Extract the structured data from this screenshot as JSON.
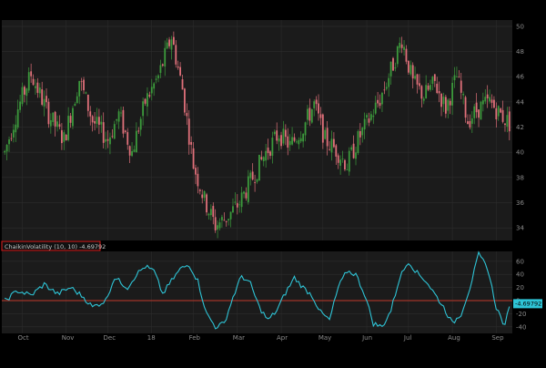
{
  "theme": {
    "background": "#000000",
    "panel": "#1b1b1b",
    "grid": "#2e2e2e",
    "up": "#3c9a3c",
    "down": "#e0707a",
    "axis_text": "#8a8a8a",
    "osc_line": "#2ec4d6",
    "zero_line": "#c0392b",
    "label_border": "#e02020"
  },
  "price_axis": {
    "labels": [
      "50",
      "48",
      "46",
      "44",
      "42",
      "40",
      "38",
      "36",
      "34"
    ],
    "min": 33,
    "max": 50.5
  },
  "osc_axis": {
    "labels": [
      "60",
      "40",
      "20",
      "0",
      "-20",
      "-40"
    ],
    "min": -50,
    "max": 75
  },
  "time_axis": {
    "labels": [
      "Oct",
      "Nov",
      "Dec",
      "18",
      "Feb",
      "Mar",
      "Apr",
      "May",
      "Jun",
      "Jul",
      "Aug",
      "Sep"
    ]
  },
  "study": {
    "label": "ChaikinVolatility (10, 10) -4.69792",
    "value_badge": "-4.69792"
  },
  "chart_data": {
    "type": "candlestick",
    "panels": [
      "price",
      "ChaikinVolatility"
    ],
    "price_range": [
      33,
      50.5
    ],
    "price_trend_anchors": [
      [
        0,
        40
      ],
      [
        6,
        43.5
      ],
      [
        12,
        46.2
      ],
      [
        20,
        43
      ],
      [
        27,
        41
      ],
      [
        34,
        45.8
      ],
      [
        40,
        42.5
      ],
      [
        47,
        41
      ],
      [
        52,
        43
      ],
      [
        58,
        40
      ],
      [
        64,
        44
      ],
      [
        70,
        46
      ],
      [
        76,
        49.2
      ],
      [
        81,
        45
      ],
      [
        86,
        39
      ],
      [
        91,
        36.2
      ],
      [
        96,
        34.2
      ],
      [
        101,
        34.8
      ],
      [
        107,
        36
      ],
      [
        113,
        38
      ],
      [
        119,
        40
      ],
      [
        125,
        41.5
      ],
      [
        130,
        40.5
      ],
      [
        136,
        42
      ],
      [
        141,
        43.8
      ],
      [
        146,
        41
      ],
      [
        151,
        40.2
      ],
      [
        156,
        39
      ],
      [
        161,
        41
      ],
      [
        166,
        42.6
      ],
      [
        171,
        44.2
      ],
      [
        176,
        46.5
      ],
      [
        181,
        49
      ],
      [
        186,
        45.5
      ],
      [
        191,
        44.5
      ],
      [
        196,
        45.5
      ],
      [
        201,
        43.5
      ],
      [
        206,
        46
      ],
      [
        211,
        42.5
      ],
      [
        216,
        43.5
      ],
      [
        221,
        44
      ],
      [
        226,
        43
      ],
      [
        230,
        42.3
      ]
    ],
    "osc_range": [
      -50,
      75
    ],
    "osc_trend_anchors": [
      [
        0,
        0
      ],
      [
        6,
        15
      ],
      [
        12,
        8
      ],
      [
        18,
        25
      ],
      [
        24,
        10
      ],
      [
        30,
        20
      ],
      [
        36,
        5
      ],
      [
        40,
        -10
      ],
      [
        46,
        0
      ],
      [
        50,
        35
      ],
      [
        56,
        20
      ],
      [
        60,
        40
      ],
      [
        64,
        52
      ],
      [
        68,
        45
      ],
      [
        72,
        10
      ],
      [
        76,
        30
      ],
      [
        80,
        48
      ],
      [
        84,
        55
      ],
      [
        88,
        30
      ],
      [
        92,
        -20
      ],
      [
        96,
        -40
      ],
      [
        100,
        -35
      ],
      [
        104,
        5
      ],
      [
        108,
        38
      ],
      [
        112,
        25
      ],
      [
        116,
        -10
      ],
      [
        120,
        -30
      ],
      [
        124,
        -15
      ],
      [
        128,
        12
      ],
      [
        132,
        35
      ],
      [
        136,
        20
      ],
      [
        140,
        8
      ],
      [
        144,
        -18
      ],
      [
        148,
        -30
      ],
      [
        152,
        20
      ],
      [
        156,
        45
      ],
      [
        160,
        40
      ],
      [
        164,
        10
      ],
      [
        168,
        -35
      ],
      [
        172,
        -40
      ],
      [
        176,
        -15
      ],
      [
        180,
        35
      ],
      [
        184,
        60
      ],
      [
        188,
        42
      ],
      [
        192,
        30
      ],
      [
        196,
        10
      ],
      [
        200,
        -10
      ],
      [
        204,
        -35
      ],
      [
        208,
        -20
      ],
      [
        212,
        20
      ],
      [
        216,
        70
      ],
      [
        220,
        50
      ],
      [
        224,
        -10
      ],
      [
        228,
        -40
      ],
      [
        230,
        -5
      ]
    ],
    "last_osc_value": -4.69792
  }
}
